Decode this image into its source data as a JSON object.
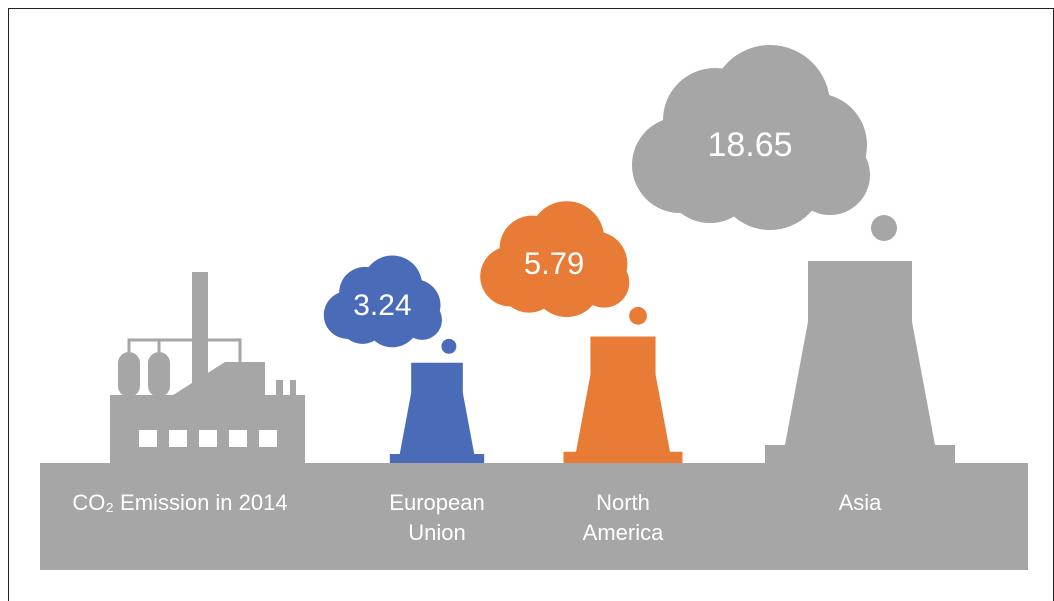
{
  "chart_data": {
    "type": "pictorial",
    "title": "CO₂ Emission in 2014",
    "categories": [
      "European Union",
      "North America",
      "Asia"
    ],
    "values": [
      3.24,
      5.79,
      18.65
    ],
    "colors": [
      "#4a6cb8",
      "#e87b35",
      "#a6a6a6"
    ]
  }
}
